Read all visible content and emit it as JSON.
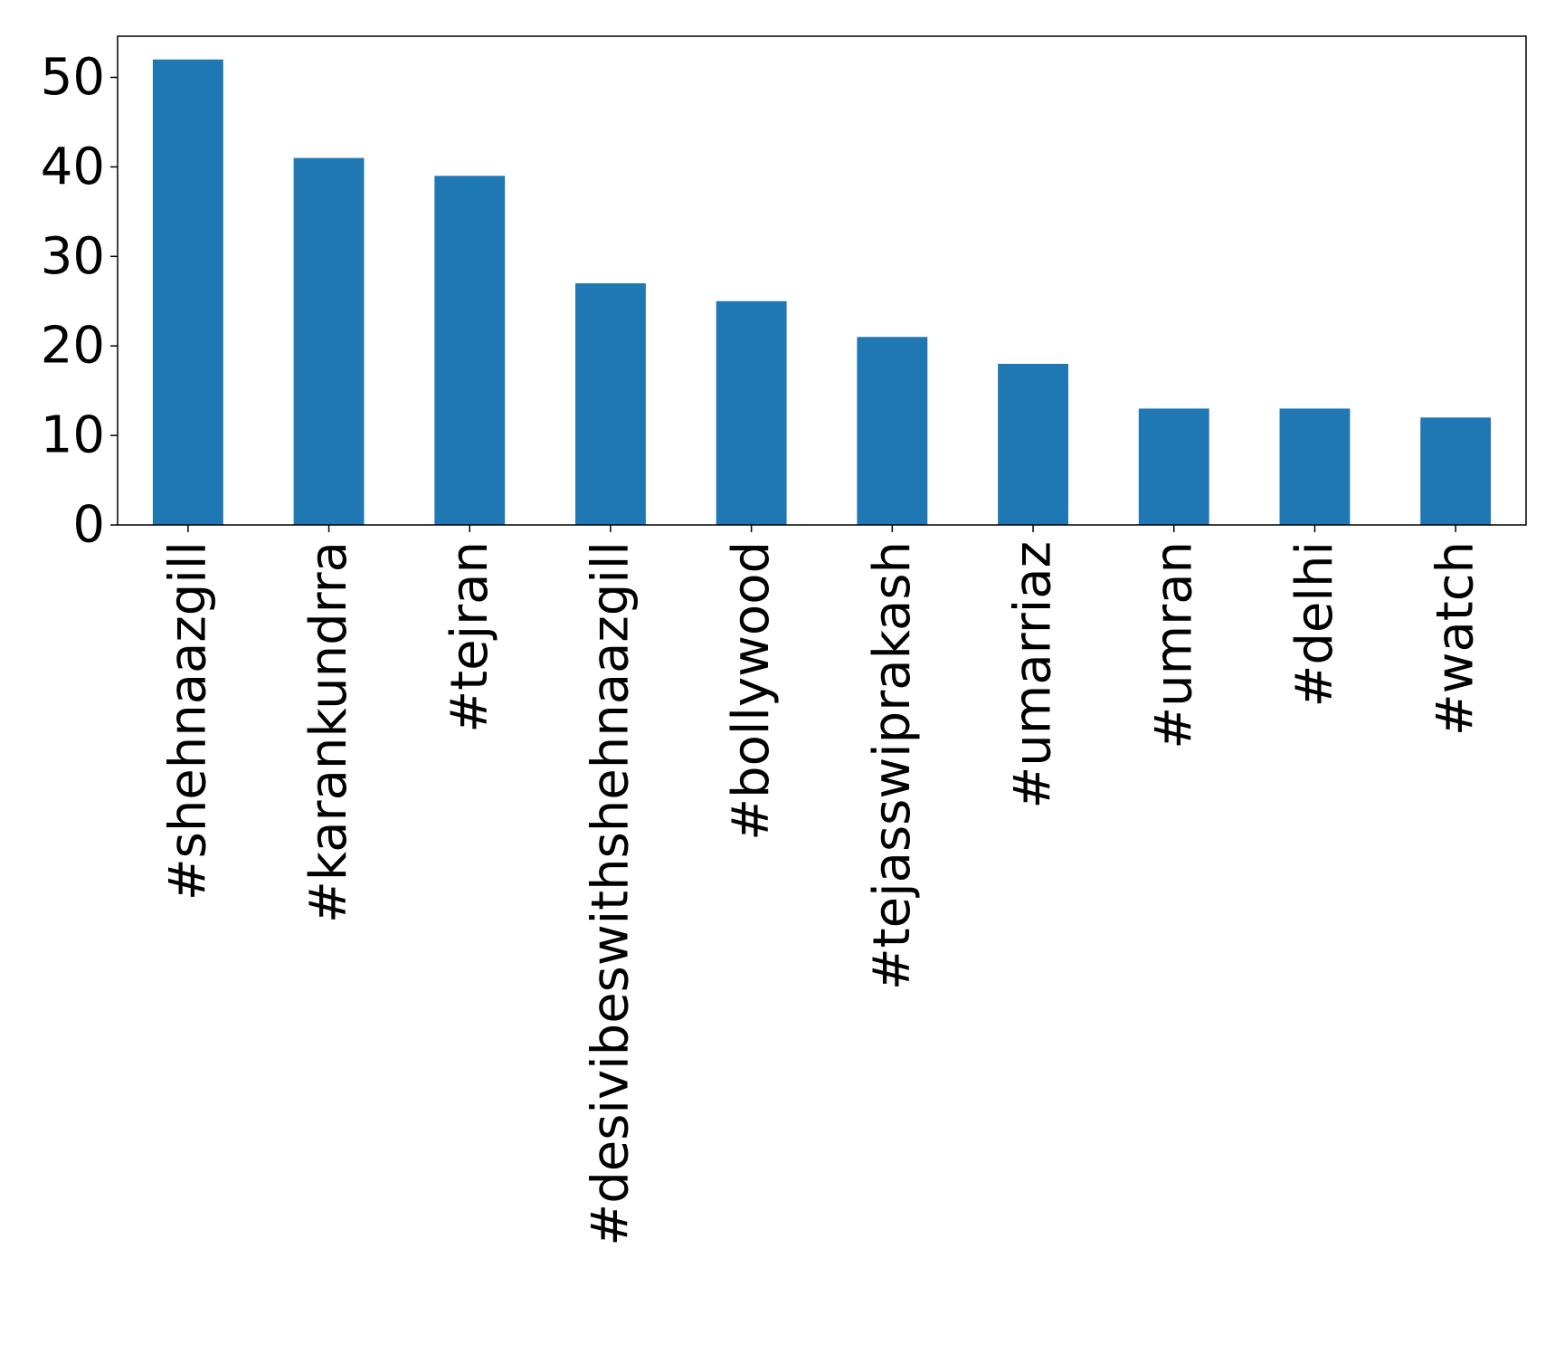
{
  "chart_data": {
    "type": "bar",
    "title": "",
    "xlabel": "",
    "ylabel": "",
    "categories": [
      "#shehnaazgill",
      "#karankundrra",
      "#tejran",
      "#desivibeswithshehnaazgill",
      "#bollywood",
      "#tejasswiprakash",
      "#umarriaz",
      "#umran",
      "#delhi",
      "#watch"
    ],
    "values": [
      52,
      41,
      39,
      27,
      25,
      21,
      18,
      13,
      13,
      12
    ],
    "yticks": [
      0,
      10,
      20,
      30,
      40,
      50
    ],
    "ylim": [
      0,
      54.6
    ],
    "grid": false,
    "legend": "none",
    "bar_color": "#1f77b4"
  }
}
